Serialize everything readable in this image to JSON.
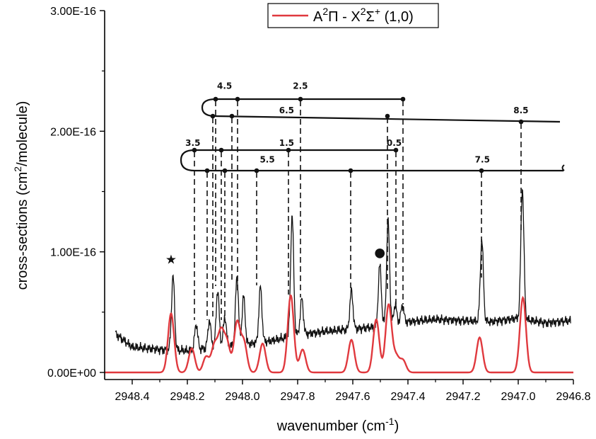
{
  "chart_data": {
    "type": "line",
    "xlabel": "wavenumber (cm",
    "xlabel_sup": "-1",
    "xlabel_end": ")",
    "ylabel": "cross-sections (cm",
    "ylabel_sup": "2",
    "ylabel_end": "/molecule)",
    "xlim": [
      2948.5,
      2946.8
    ],
    "ylim": [
      0,
      3e-16
    ],
    "x_ticks": [
      2948.4,
      2948.2,
      2948.0,
      2947.8,
      2947.6,
      2947.4,
      2947.2,
      2947.0,
      2946.8
    ],
    "x_tick_labels": [
      "2948.4",
      "2948.2",
      "2948.0",
      "2947.8",
      "2947.6",
      "2947.4",
      "2947.2",
      "2947.0",
      "2946.8"
    ],
    "y_ticks": [
      0,
      1e-16,
      2e-16,
      3e-16
    ],
    "y_tick_labels": [
      "0.00E+00",
      "1.00E-16",
      "2.00E-16",
      "3.00E-16"
    ],
    "legend": {
      "position": "top-center",
      "prefix": "A",
      "sup1": "2",
      "mid1": "Π - X",
      "sup2": "2",
      "mid2": "Σ",
      "sup3": "+",
      "suffix": " (1,0)"
    },
    "colors": {
      "simulated": "#e0393e",
      "observed": "#111111"
    },
    "series": [
      {
        "name": "A²Π - X²Σ⁺ (1,0)",
        "style": "simulated",
        "baseline": 0,
        "peaks": [
          {
            "x": 2948.259,
            "y": 4.9e-17
          },
          {
            "x": 2948.184,
            "y": 2e-17
          },
          {
            "x": 2948.132,
            "y": 1.3e-17
          },
          {
            "x": 2948.102,
            "y": 2.2e-17
          },
          {
            "x": 2948.078,
            "y": 3.2e-17
          },
          {
            "x": 2948.056,
            "y": 2.4e-17
          },
          {
            "x": 2948.02,
            "y": 4.1e-17
          },
          {
            "x": 2947.995,
            "y": 2.5e-17
          },
          {
            "x": 2947.927,
            "y": 2.4e-17
          },
          {
            "x": 2947.825,
            "y": 6.4e-17
          },
          {
            "x": 2947.782,
            "y": 1.9e-17
          },
          {
            "x": 2947.605,
            "y": 2.7e-17
          },
          {
            "x": 2947.515,
            "y": 4.4e-17
          },
          {
            "x": 2947.47,
            "y": 5.6e-17
          },
          {
            "x": 2947.443,
            "y": 1.3e-17
          },
          {
            "x": 2947.418,
            "y": 1e-17
          },
          {
            "x": 2947.14,
            "y": 2.9e-17
          },
          {
            "x": 2946.983,
            "y": 6.2e-17
          }
        ]
      },
      {
        "name": "",
        "style": "observed",
        "baseline_points": [
          {
            "x": 2948.46,
            "y": 3.2e-17
          },
          {
            "x": 2948.4,
            "y": 2.1e-17
          },
          {
            "x": 2948.3,
            "y": 1.9e-17
          },
          {
            "x": 2948.2,
            "y": 1.8e-17
          },
          {
            "x": 2948.1,
            "y": 2.1e-17
          },
          {
            "x": 2948.0,
            "y": 2.3e-17
          },
          {
            "x": 2947.9,
            "y": 2.6e-17
          },
          {
            "x": 2947.8,
            "y": 3.1e-17
          },
          {
            "x": 2947.7,
            "y": 3.4e-17
          },
          {
            "x": 2947.6,
            "y": 3.6e-17
          },
          {
            "x": 2947.5,
            "y": 3.8e-17
          },
          {
            "x": 2947.4,
            "y": 4.2e-17
          },
          {
            "x": 2947.3,
            "y": 4.4e-17
          },
          {
            "x": 2947.2,
            "y": 4.3e-17
          },
          {
            "x": 2947.1,
            "y": 4.2e-17
          },
          {
            "x": 2947.0,
            "y": 4.5e-17
          },
          {
            "x": 2946.9,
            "y": 4.1e-17
          },
          {
            "x": 2946.81,
            "y": 4.3e-17
          }
        ],
        "peaks": [
          {
            "x": 2948.252,
            "y": 8e-17
          },
          {
            "x": 2948.168,
            "y": 4e-17
          },
          {
            "x": 2948.12,
            "y": 4.3e-17
          },
          {
            "x": 2948.09,
            "y": 6.8e-17
          },
          {
            "x": 2948.064,
            "y": 4.6e-17
          },
          {
            "x": 2948.02,
            "y": 7.9e-17
          },
          {
            "x": 2947.996,
            "y": 6.3e-17
          },
          {
            "x": 2947.935,
            "y": 7.1e-17
          },
          {
            "x": 2947.82,
            "y": 1.3e-16
          },
          {
            "x": 2947.785,
            "y": 6.1e-17
          },
          {
            "x": 2947.605,
            "y": 6.8e-17
          },
          {
            "x": 2947.502,
            "y": 8.9e-17
          },
          {
            "x": 2947.472,
            "y": 1.25e-16
          },
          {
            "x": 2947.446,
            "y": 5.6e-17
          },
          {
            "x": 2947.42,
            "y": 5.6e-17
          },
          {
            "x": 2947.132,
            "y": 1.1e-16
          },
          {
            "x": 2946.985,
            "y": 1.53e-16
          }
        ]
      }
    ],
    "annotations": {
      "markers": [
        {
          "symbol": "★",
          "x": 2948.259,
          "y": 9e-17
        },
        {
          "symbol": "●",
          "x": 2947.502,
          "y": 9.6e-17
        }
      ],
      "branch_labels": [
        {
          "text": "4.5",
          "x": 2948.065,
          "y": 2.35e-16
        },
        {
          "text": "2.5",
          "x": 2947.79,
          "y": 2.35e-16
        },
        {
          "text": "6.5",
          "x": 2947.84,
          "y": 2.15e-16
        },
        {
          "text": "8.5",
          "x": 2946.99,
          "y": 2.15e-16
        },
        {
          "text": "3.5",
          "x": 2948.18,
          "y": 1.88e-16
        },
        {
          "text": "1.5",
          "x": 2947.84,
          "y": 1.88e-16
        },
        {
          "text": "0.5",
          "x": 2947.45,
          "y": 1.88e-16
        },
        {
          "text": "5.5",
          "x": 2947.91,
          "y": 1.74e-16
        },
        {
          "text": "7.5",
          "x": 2947.13,
          "y": 1.74e-16
        }
      ]
    }
  }
}
